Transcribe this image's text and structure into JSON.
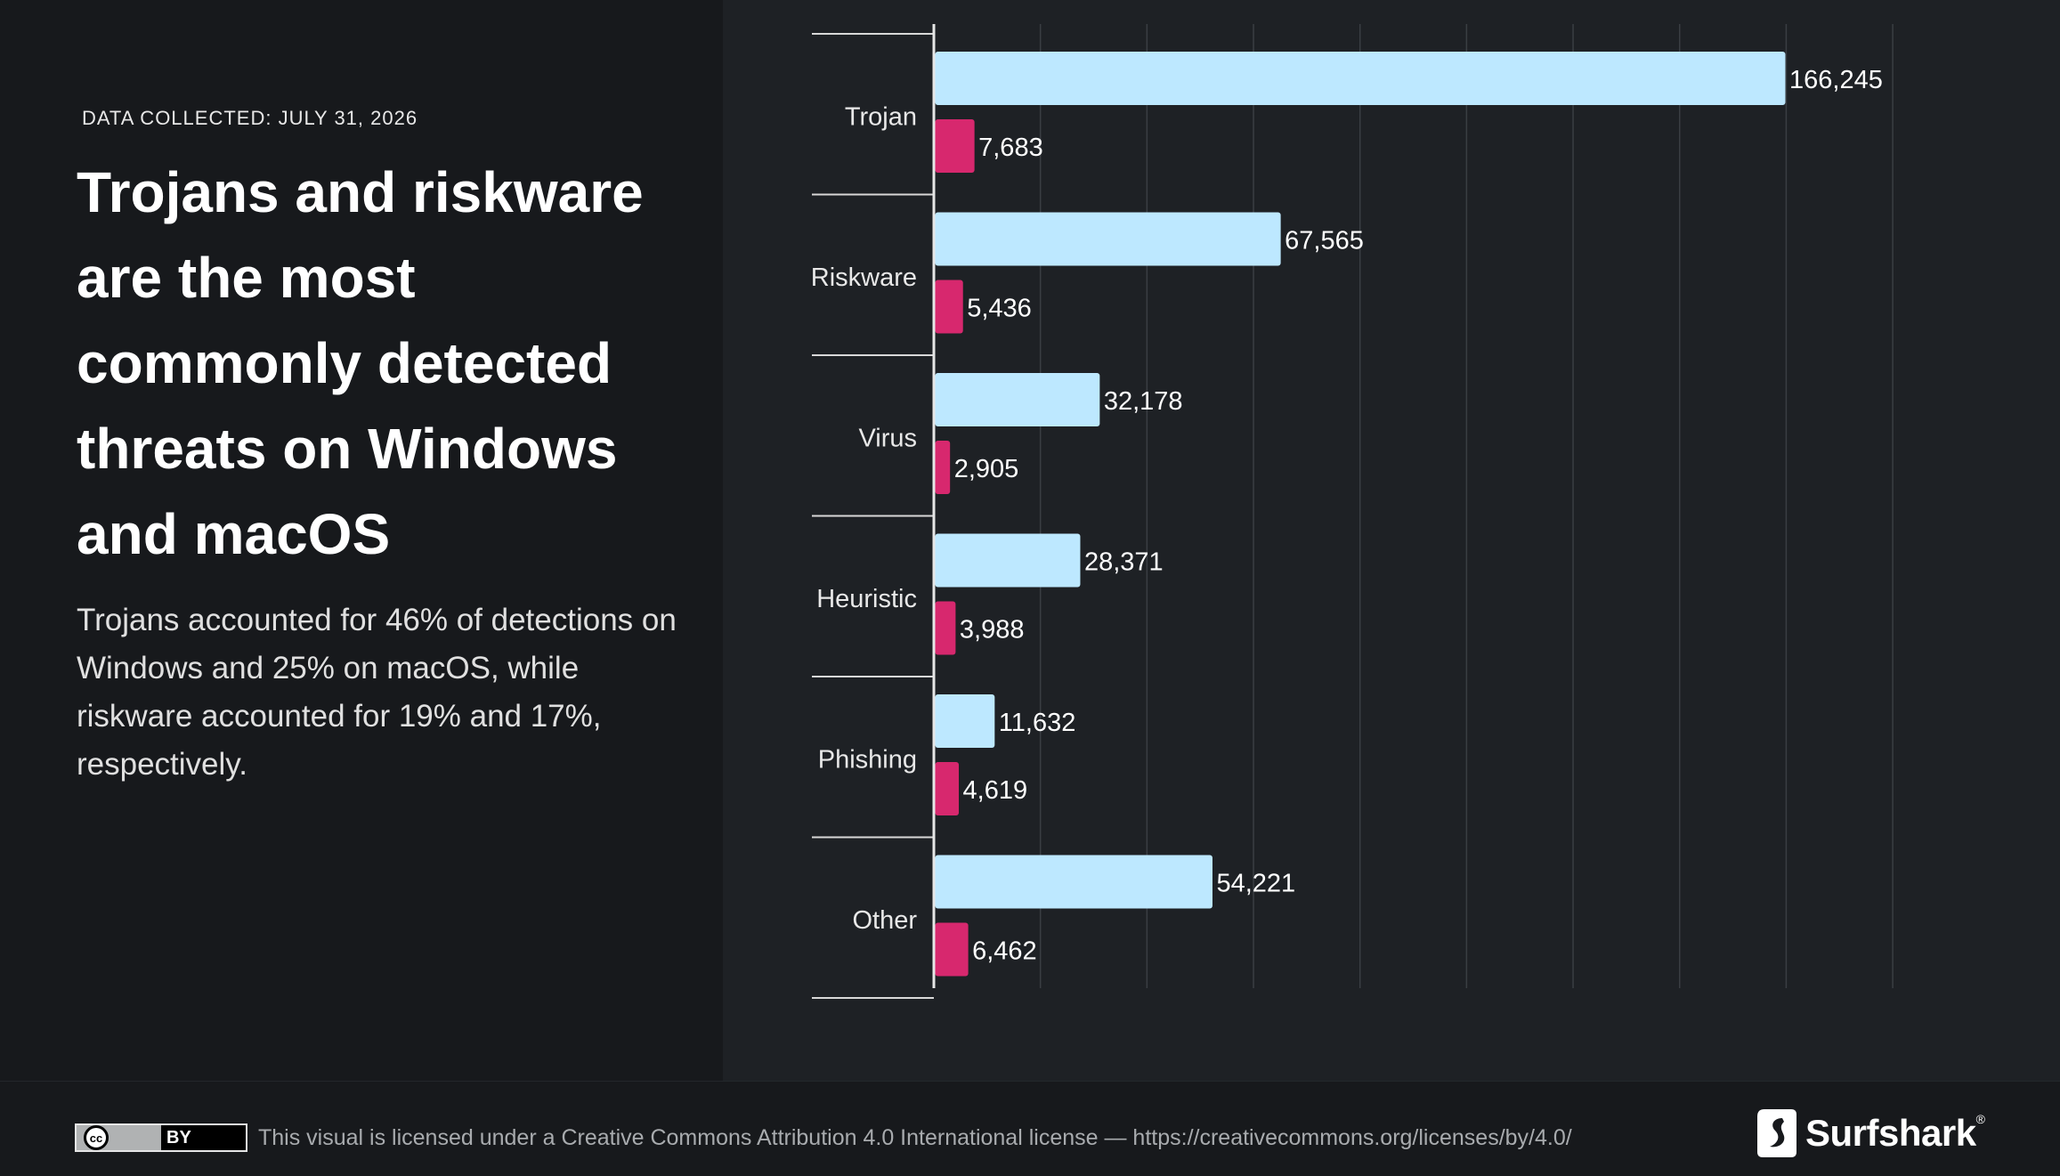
{
  "header": {
    "date_label": "DATA COLLECTED: JULY 31, 2026",
    "headline": "Trojans and riskware are the most commonly detected threats on Windows and macOS",
    "subtitle": "Trojans accounted for 46% of detections on Windows and 25% on macOS, while riskware accounted for 19% and 17%, respectively."
  },
  "chart_data": {
    "type": "bar",
    "orientation": "horizontal",
    "categories": [
      "Trojan",
      "Riskware",
      "Virus",
      "Heuristic",
      "Phishing",
      "Other"
    ],
    "series": [
      {
        "values": [
          166245,
          67565,
          32178,
          28371,
          11632,
          54221
        ],
        "color": "#bde8ff"
      },
      {
        "values": [
          7683,
          5436,
          2905,
          3988,
          4619,
          6462
        ],
        "color": "#d7286e"
      }
    ],
    "value_labels": [
      [
        "166,245",
        "67,565",
        "32,178",
        "28,371",
        "11,632",
        "54,221"
      ],
      [
        "7,683",
        "5,436",
        "2,905",
        "3,988",
        "4,619",
        "6,462"
      ]
    ],
    "xlim": [
      0,
      210000
    ],
    "grid_step": 20833,
    "grid": true,
    "legend": "none"
  },
  "footer": {
    "cc_badge": "BY",
    "cc_mark": "cc",
    "license_text": "This visual is licensed under a Creative Commons Attribution 4.0 International license — https://creativecommons.org/licenses/by/4.0/",
    "brand_name": "Surfshark",
    "brand_reg": "®"
  }
}
